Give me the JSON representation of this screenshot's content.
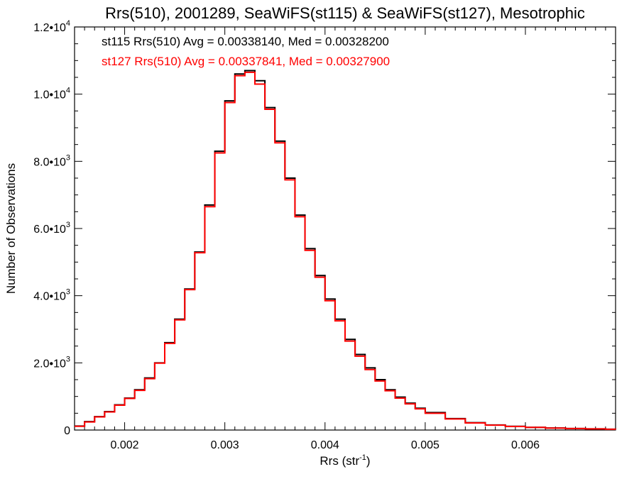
{
  "chart_data": {
    "type": "line",
    "step": true,
    "title": "Rrs(510), 2001289, SeaWiFS(st115) & SeaWiFS(st127), Mesotrophic",
    "xlabel": "Rrs (str",
    "xlabel_sup": "-1",
    "xlabel_end": ")",
    "ylabel": "Number of Observations",
    "xlim": [
      0.0015,
      0.0069
    ],
    "ylim": [
      0,
      12000
    ],
    "grid": false,
    "x_ticks": [
      {
        "value": 0.002,
        "label": "0.002"
      },
      {
        "value": 0.003,
        "label": "0.003"
      },
      {
        "value": 0.004,
        "label": "0.004"
      },
      {
        "value": 0.005,
        "label": "0.005"
      },
      {
        "value": 0.006,
        "label": "0.006"
      }
    ],
    "y_ticks": [
      {
        "value": 0,
        "mant": "0",
        "exp": ""
      },
      {
        "value": 2000,
        "mant": "2.0•10",
        "exp": "3"
      },
      {
        "value": 4000,
        "mant": "4.0•10",
        "exp": "3"
      },
      {
        "value": 6000,
        "mant": "6.0•10",
        "exp": "3"
      },
      {
        "value": 8000,
        "mant": "8.0•10",
        "exp": "3"
      },
      {
        "value": 10000,
        "mant": "1.0•10",
        "exp": "4"
      },
      {
        "value": 12000,
        "mant": "1.2•10",
        "exp": "4"
      }
    ],
    "annotations": [
      {
        "text": "st115 Rrs(510) Avg = 0.00338140, Med = 0.00328200",
        "color": "#000000"
      },
      {
        "text": "st127 Rrs(510) Avg = 0.00337841, Med = 0.00327900",
        "color": "#ff0000"
      }
    ],
    "x": [
      0.0015,
      0.0016,
      0.0017,
      0.0018,
      0.0019,
      0.002,
      0.0021,
      0.0022,
      0.0023,
      0.0024,
      0.0025,
      0.0026,
      0.0027,
      0.0028,
      0.0029,
      0.003,
      0.0031,
      0.0032,
      0.0033,
      0.0034,
      0.0035,
      0.0036,
      0.0037,
      0.0038,
      0.0039,
      0.004,
      0.0041,
      0.0042,
      0.0043,
      0.0044,
      0.0045,
      0.0046,
      0.0047,
      0.0048,
      0.0049,
      0.005,
      0.0052,
      0.0054,
      0.0056,
      0.0058,
      0.006,
      0.0062,
      0.0064,
      0.0066,
      0.0068,
      0.0069
    ],
    "series": [
      {
        "name": "st115",
        "color": "#000000",
        "values": [
          120,
          250,
          400,
          550,
          750,
          950,
          1200,
          1550,
          2000,
          2600,
          3300,
          4200,
          5300,
          6700,
          8300,
          9800,
          10600,
          10700,
          10400,
          9600,
          8600,
          7500,
          6400,
          5400,
          4600,
          3900,
          3300,
          2700,
          2250,
          1850,
          1500,
          1200,
          980,
          800,
          650,
          520,
          340,
          220,
          150,
          110,
          80,
          60,
          45,
          35,
          25,
          20
        ]
      },
      {
        "name": "st127",
        "color": "#ff0000",
        "values": [
          110,
          240,
          390,
          540,
          740,
          940,
          1180,
          1530,
          1990,
          2580,
          3280,
          4180,
          5280,
          6650,
          8250,
          9750,
          10550,
          10650,
          10300,
          9550,
          8550,
          7450,
          6350,
          5350,
          4550,
          3850,
          3250,
          2650,
          2200,
          1800,
          1460,
          1170,
          950,
          780,
          630,
          500,
          330,
          210,
          145,
          105,
          78,
          58,
          44,
          34,
          24,
          18
        ]
      }
    ]
  }
}
